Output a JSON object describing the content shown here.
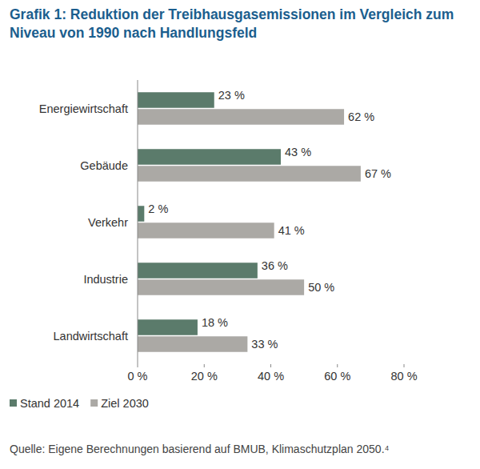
{
  "chart_data": {
    "type": "bar",
    "orientation": "horizontal",
    "title": "Grafik 1: Reduktion der Treibhausgasemissionen im Vergleich zum Niveau von 1990 nach Handlungsfeld",
    "source": "Quelle: Eigene Berechnungen basierend auf BMUB, Klimaschutzplan 2050.⁴",
    "categories": [
      "Energiewirtschaft",
      "Gebäude",
      "Verkehr",
      "Industrie",
      "Landwirtschaft"
    ],
    "series": [
      {
        "name": "Stand 2014",
        "color": "#5b7b6b",
        "values": [
          23,
          43,
          2,
          36,
          18
        ],
        "value_labels": [
          "23 %",
          "43 %",
          "2 %",
          "36 %",
          "18 %"
        ]
      },
      {
        "name": "Ziel 2030",
        "color": "#aba9a5",
        "values": [
          62,
          67,
          41,
          50,
          33
        ],
        "value_labels": [
          "62 %",
          "67 %",
          "41 %",
          "50 %",
          "33 %"
        ]
      }
    ],
    "xlim": [
      0,
      80
    ],
    "xticks": [
      {
        "value": 0,
        "label": "0 %"
      },
      {
        "value": 20,
        "label": "20 %"
      },
      {
        "value": 40,
        "label": "40 %"
      },
      {
        "value": 60,
        "label": "60 %"
      },
      {
        "value": 80,
        "label": "80 %"
      }
    ],
    "grid": false,
    "legend": "bottom",
    "data_labels": true
  }
}
